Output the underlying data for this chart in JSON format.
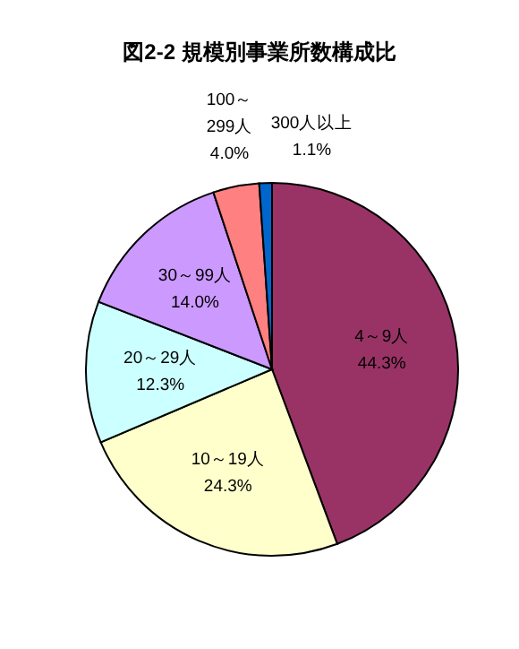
{
  "chart_data": {
    "type": "pie",
    "title": "図2-2 規模別事業所数構成比",
    "categories": [
      "4～9人",
      "10～19人",
      "20～29人",
      "30～99人",
      "100～299人",
      "300人以上"
    ],
    "values": [
      44.3,
      24.3,
      12.3,
      14.0,
      4.0,
      1.1
    ],
    "value_labels": [
      "44.3%",
      "24.3%",
      "12.3%",
      "14.0%",
      "4.0%",
      "1.1%"
    ],
    "colors": [
      "#993366",
      "#ffffcc",
      "#ccffff",
      "#cc99ff",
      "#ff8080",
      "#0066cc"
    ]
  }
}
